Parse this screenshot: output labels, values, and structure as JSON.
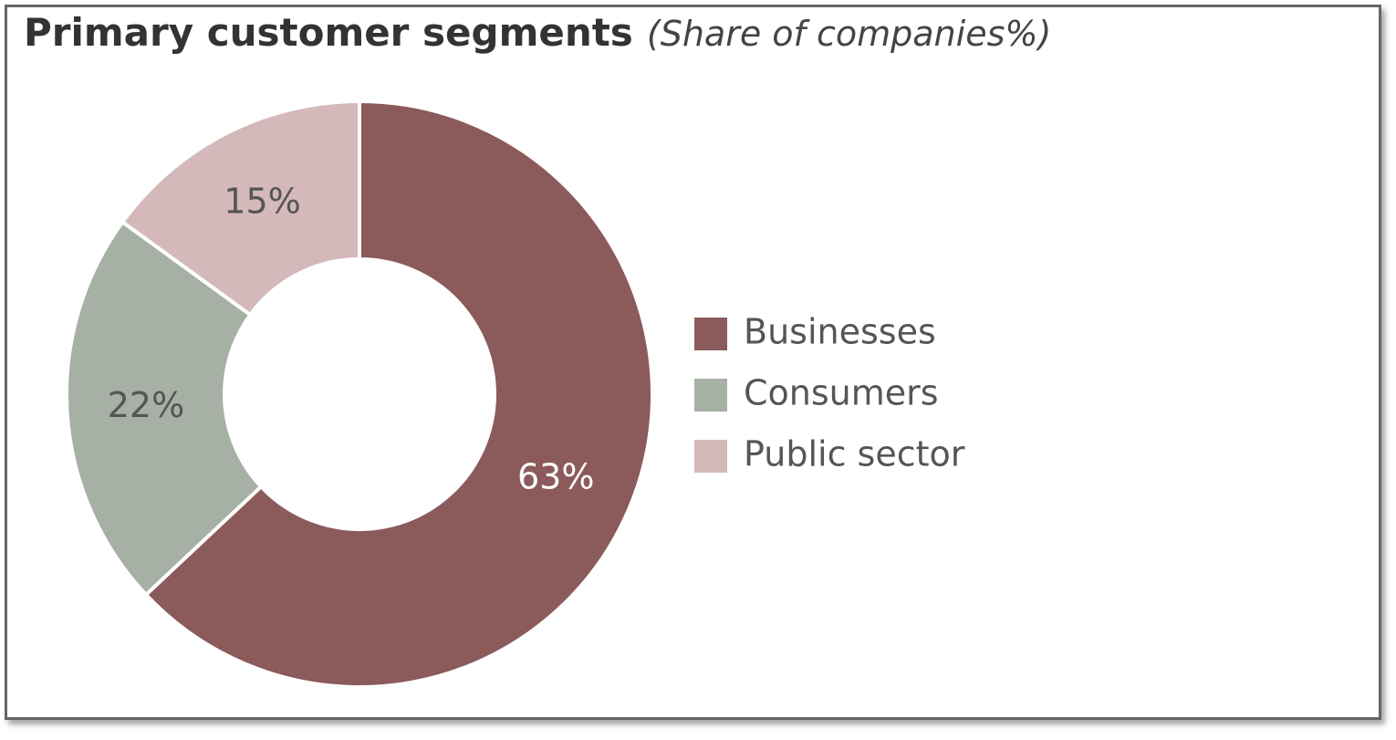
{
  "chart_data": {
    "type": "donut",
    "title": "Primary customer segments",
    "subtitle": "(Share of companies%)",
    "categories": [
      "Businesses",
      "Consumers",
      "Public sector"
    ],
    "values": [
      63,
      22,
      15
    ],
    "value_labels": [
      "63%",
      "22%",
      "15%"
    ],
    "colors": [
      "#8b5a5a",
      "#a6b0a4",
      "#d4b8ba"
    ],
    "legend": "right"
  }
}
